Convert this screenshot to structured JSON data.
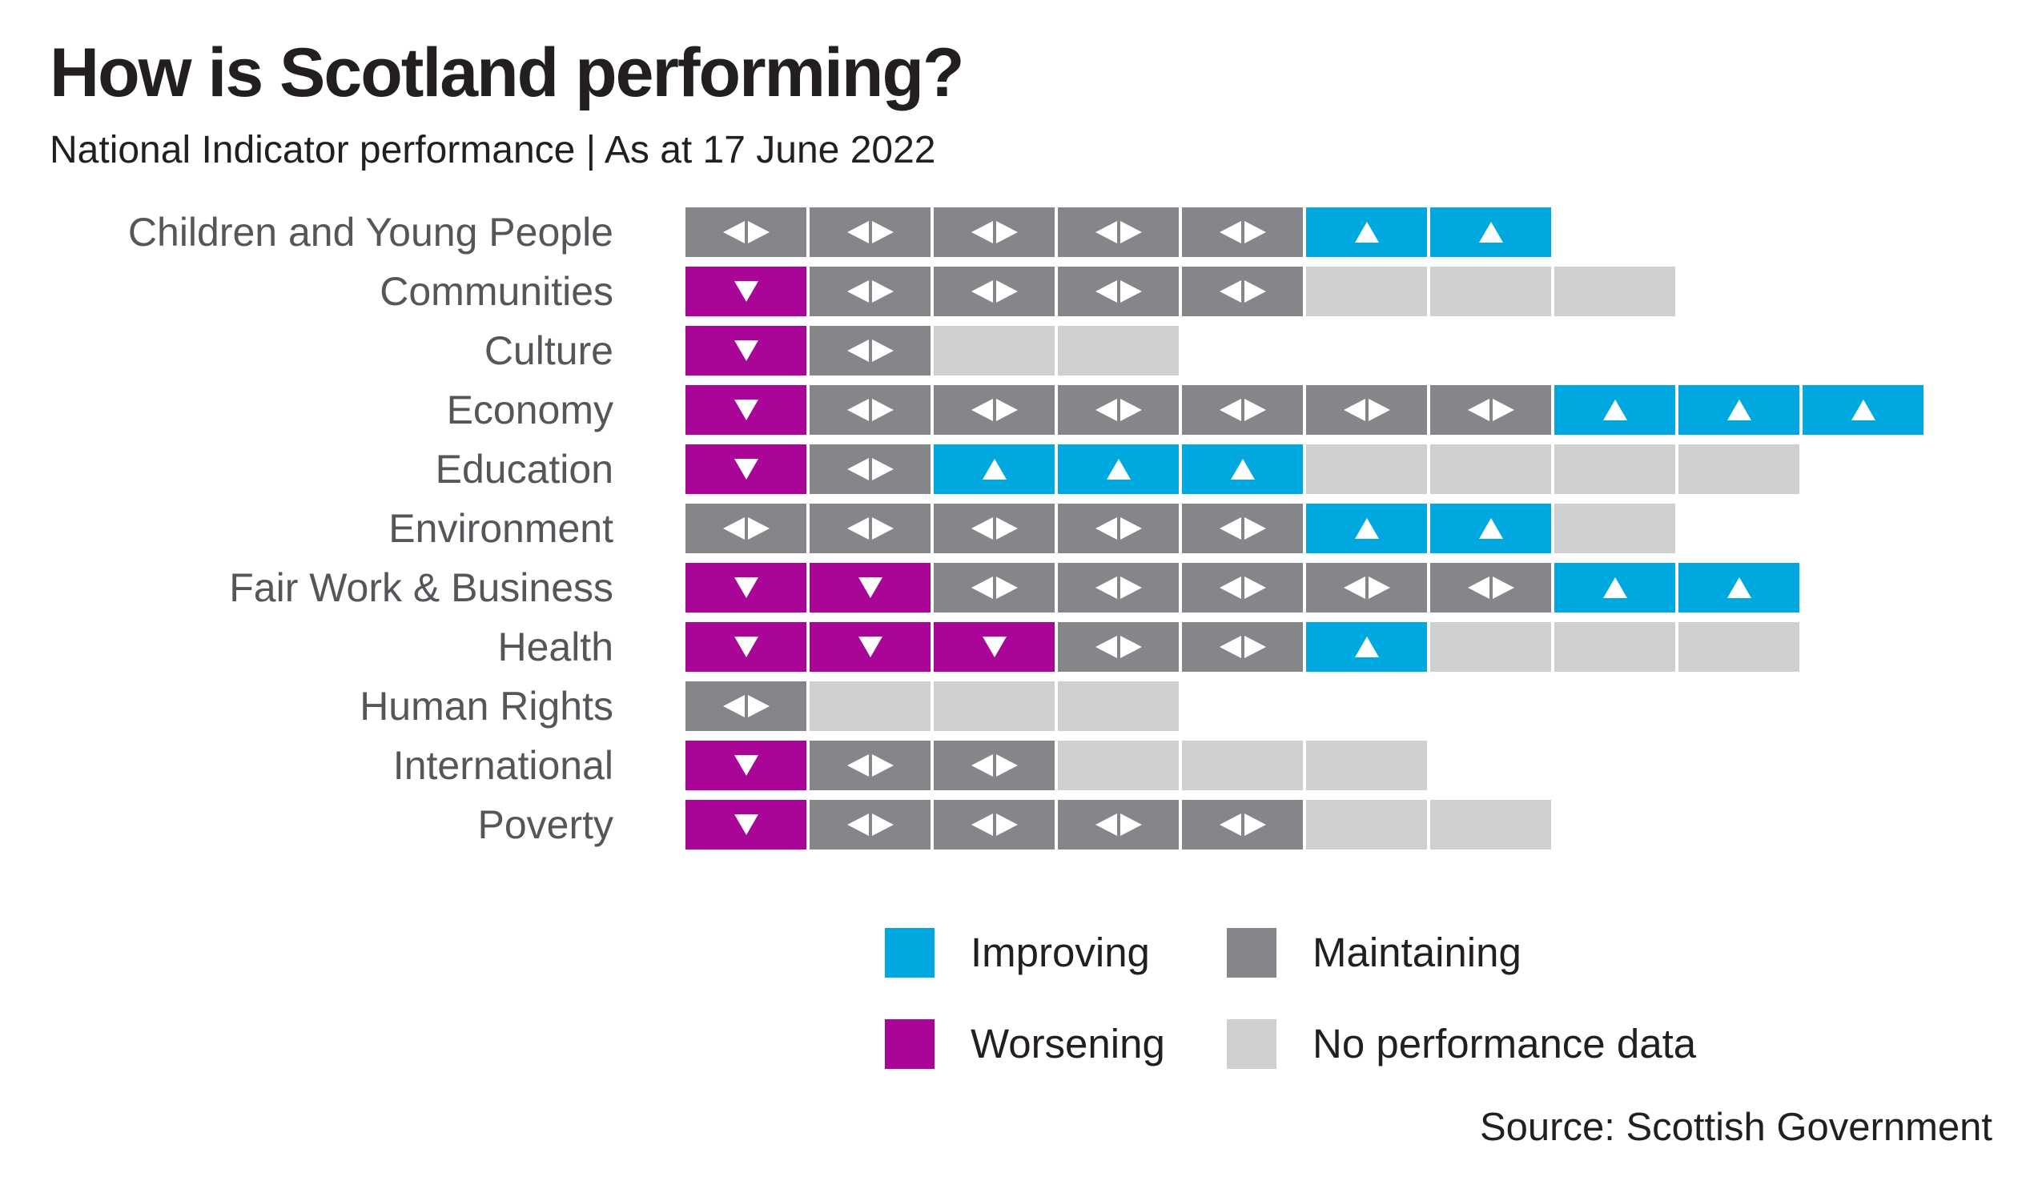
{
  "header": {
    "title": "How is Scotland performing?",
    "subtitle": "National Indicator performance | As at 17 June 2022"
  },
  "chart_data": {
    "type": "heatmap",
    "title": "How is Scotland performing?",
    "subtitle": "National Indicator performance | As at 17 June 2022",
    "description": "Grid of National Indicator statuses; one square per indicator in each category row",
    "status_colors": {
      "improving": "#00a8e0",
      "maintaining": "#84868a",
      "worsening": "#a90597",
      "nodata": "#cdcfd1"
    },
    "status_symbols": {
      "improving": "up-triangle",
      "maintaining": "left-right-triangles",
      "worsening": "down-triangle",
      "nodata": "none"
    },
    "categories": [
      "Children and Young People",
      "Communities",
      "Culture",
      "Economy",
      "Education",
      "Environment",
      "Fair Work & Business",
      "Health",
      "Human Rights",
      "International",
      "Poverty"
    ],
    "rows": [
      {
        "category": "Children and Young People",
        "statuses": [
          "maintaining",
          "maintaining",
          "maintaining",
          "maintaining",
          "maintaining",
          "improving",
          "improving"
        ]
      },
      {
        "category": "Communities",
        "statuses": [
          "worsening",
          "maintaining",
          "maintaining",
          "maintaining",
          "maintaining",
          "nodata",
          "nodata",
          "nodata"
        ]
      },
      {
        "category": "Culture",
        "statuses": [
          "worsening",
          "maintaining",
          "nodata",
          "nodata"
        ]
      },
      {
        "category": "Economy",
        "statuses": [
          "worsening",
          "maintaining",
          "maintaining",
          "maintaining",
          "maintaining",
          "maintaining",
          "maintaining",
          "improving",
          "improving",
          "improving"
        ]
      },
      {
        "category": "Education",
        "statuses": [
          "worsening",
          "maintaining",
          "improving",
          "improving",
          "improving",
          "nodata",
          "nodata",
          "nodata",
          "nodata"
        ]
      },
      {
        "category": "Environment",
        "statuses": [
          "maintaining",
          "maintaining",
          "maintaining",
          "maintaining",
          "maintaining",
          "improving",
          "improving",
          "nodata"
        ]
      },
      {
        "category": "Fair Work & Business",
        "statuses": [
          "worsening",
          "worsening",
          "maintaining",
          "maintaining",
          "maintaining",
          "maintaining",
          "maintaining",
          "improving",
          "improving"
        ]
      },
      {
        "category": "Health",
        "statuses": [
          "worsening",
          "worsening",
          "worsening",
          "maintaining",
          "maintaining",
          "improving",
          "nodata",
          "nodata",
          "nodata"
        ]
      },
      {
        "category": "Human Rights",
        "statuses": [
          "maintaining",
          "nodata",
          "nodata",
          "nodata"
        ]
      },
      {
        "category": "International",
        "statuses": [
          "worsening",
          "maintaining",
          "maintaining",
          "nodata",
          "nodata",
          "nodata"
        ]
      },
      {
        "category": "Poverty",
        "statuses": [
          "worsening",
          "maintaining",
          "maintaining",
          "maintaining",
          "maintaining",
          "nodata",
          "nodata"
        ]
      }
    ],
    "legend": [
      {
        "key": "improving",
        "label": "Improving"
      },
      {
        "key": "maintaining",
        "label": "Maintaining"
      },
      {
        "key": "worsening",
        "label": "Worsening"
      },
      {
        "key": "nodata",
        "label": "No performance data"
      }
    ],
    "legend_position": "bottom",
    "grid": false,
    "source": "Source: Scottish Government"
  }
}
